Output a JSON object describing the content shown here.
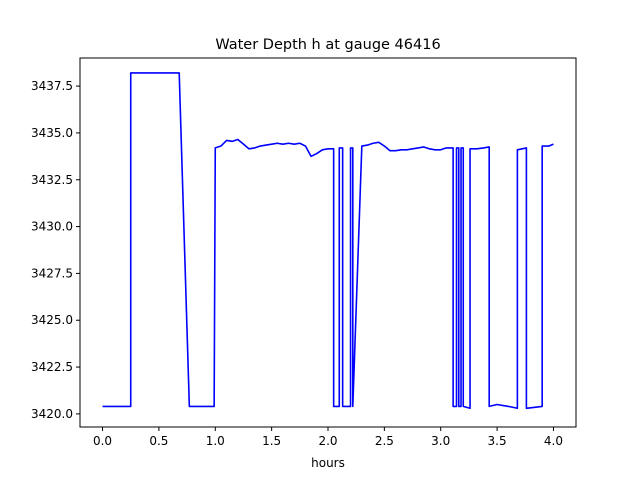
{
  "chart_data": {
    "type": "line",
    "title": "Water Depth h at gauge 46416",
    "xlabel": "hours",
    "ylabel": "",
    "xlim": [
      -0.2,
      4.2
    ],
    "ylim": [
      3419.3,
      3439.0
    ],
    "xticks": [
      0.0,
      0.5,
      1.0,
      1.5,
      2.0,
      2.5,
      3.0,
      3.5,
      4.0
    ],
    "xtick_labels": [
      "0.0",
      "0.5",
      "1.0",
      "1.5",
      "2.0",
      "2.5",
      "3.0",
      "3.5",
      "4.0"
    ],
    "yticks": [
      3420.0,
      3422.5,
      3425.0,
      3427.5,
      3430.0,
      3432.5,
      3435.0,
      3437.5
    ],
    "ytick_labels": [
      "3420.0",
      "3422.5",
      "3425.0",
      "3427.5",
      "3430.0",
      "3432.5",
      "3435.0",
      "3437.5"
    ],
    "grid": false,
    "series": [
      {
        "color": "#0000ff",
        "x": [
          0.0,
          0.25,
          0.25,
          0.68,
          0.77,
          0.99,
          1.0,
          1.05,
          1.1,
          1.15,
          1.2,
          1.25,
          1.3,
          1.35,
          1.4,
          1.45,
          1.5,
          1.55,
          1.6,
          1.65,
          1.7,
          1.75,
          1.8,
          1.85,
          1.9,
          1.95,
          2.0,
          2.05,
          2.05,
          2.1,
          2.1,
          2.13,
          2.13,
          2.2,
          2.2,
          2.22,
          2.22,
          2.3,
          2.35,
          2.4,
          2.45,
          2.5,
          2.55,
          2.6,
          2.65,
          2.7,
          2.75,
          2.8,
          2.85,
          2.9,
          2.95,
          3.0,
          3.05,
          3.1,
          3.11,
          3.11,
          3.14,
          3.14,
          3.16,
          3.16,
          3.18,
          3.18,
          3.2,
          3.2,
          3.26,
          3.26,
          3.32,
          3.38,
          3.43,
          3.43,
          3.5,
          3.6,
          3.68,
          3.68,
          3.76,
          3.76,
          3.9,
          3.9,
          3.96,
          4.0
        ],
        "y": [
          3420.4,
          3420.4,
          3438.2,
          3438.2,
          3420.4,
          3420.4,
          3434.2,
          3434.3,
          3434.6,
          3434.55,
          3434.65,
          3434.4,
          3434.15,
          3434.2,
          3434.3,
          3434.35,
          3434.4,
          3434.45,
          3434.4,
          3434.45,
          3434.4,
          3434.45,
          3434.3,
          3433.75,
          3433.9,
          3434.1,
          3434.15,
          3434.15,
          3420.4,
          3420.4,
          3434.2,
          3434.2,
          3420.4,
          3420.4,
          3434.2,
          3434.2,
          3420.4,
          3434.3,
          3434.35,
          3434.45,
          3434.5,
          3434.3,
          3434.05,
          3434.05,
          3434.1,
          3434.1,
          3434.15,
          3434.2,
          3434.25,
          3434.15,
          3434.1,
          3434.1,
          3434.2,
          3434.2,
          3434.2,
          3420.4,
          3420.4,
          3434.2,
          3434.2,
          3420.4,
          3420.4,
          3434.2,
          3434.2,
          3420.4,
          3420.3,
          3434.15,
          3434.15,
          3434.2,
          3434.25,
          3420.4,
          3420.5,
          3420.4,
          3420.3,
          3434.1,
          3434.2,
          3420.3,
          3420.4,
          3434.3,
          3434.3,
          3434.4
        ]
      }
    ]
  }
}
